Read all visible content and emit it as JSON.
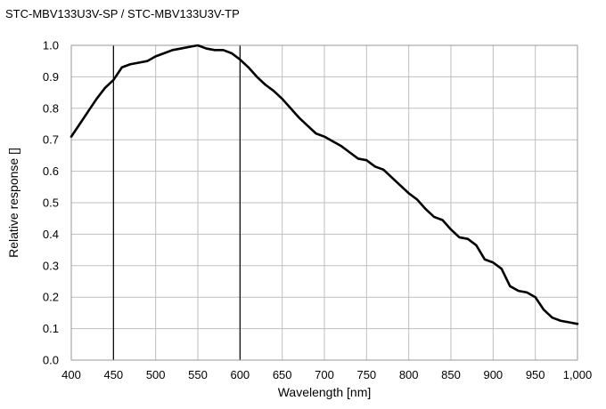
{
  "chart_data": {
    "type": "line",
    "title": "STC-MBV133U3V-SP / STC-MBV133U3V-TP",
    "xlabel": "Wavelength [nm]",
    "ylabel": "Relative response []",
    "xlim": [
      400,
      1000
    ],
    "ylim": [
      0.0,
      1.0
    ],
    "x_ticks": [
      400,
      450,
      500,
      550,
      600,
      650,
      700,
      750,
      800,
      850,
      900,
      950,
      1000
    ],
    "x_tick_labels": [
      "400",
      "450",
      "500",
      "550",
      "600",
      "650",
      "700",
      "750",
      "800",
      "850",
      "900",
      "950",
      "1,000"
    ],
    "y_ticks": [
      0.0,
      0.1,
      0.2,
      0.3,
      0.4,
      0.5,
      0.6,
      0.7,
      0.8,
      0.9,
      1.0
    ],
    "y_tick_labels": [
      "0.0",
      "0.1",
      "0.2",
      "0.3",
      "0.4",
      "0.5",
      "0.6",
      "0.7",
      "0.8",
      "0.9",
      "1.0"
    ],
    "grid": true,
    "highlight_x": [
      450,
      600
    ],
    "colors": {
      "line": "#000000",
      "grid": "#bfbfbf",
      "highlight": "#000000",
      "frame": "#999999"
    },
    "series": [
      {
        "x": [
          400,
          410,
          420,
          430,
          440,
          450,
          460,
          470,
          480,
          490,
          500,
          510,
          520,
          530,
          540,
          550,
          560,
          570,
          580,
          590,
          600,
          610,
          620,
          630,
          640,
          650,
          660,
          670,
          680,
          690,
          700,
          710,
          720,
          730,
          740,
          750,
          760,
          770,
          780,
          790,
          800,
          810,
          820,
          830,
          840,
          850,
          860,
          870,
          880,
          890,
          900,
          910,
          920,
          930,
          940,
          950,
          960,
          970,
          980,
          990,
          1000
        ],
        "values": [
          0.71,
          0.75,
          0.79,
          0.83,
          0.865,
          0.89,
          0.93,
          0.94,
          0.945,
          0.95,
          0.965,
          0.975,
          0.985,
          0.99,
          0.995,
          1.0,
          0.99,
          0.985,
          0.985,
          0.975,
          0.955,
          0.93,
          0.9,
          0.875,
          0.855,
          0.83,
          0.8,
          0.77,
          0.745,
          0.72,
          0.71,
          0.695,
          0.68,
          0.66,
          0.64,
          0.635,
          0.615,
          0.605,
          0.58,
          0.555,
          0.53,
          0.51,
          0.48,
          0.455,
          0.445,
          0.415,
          0.39,
          0.385,
          0.365,
          0.32,
          0.31,
          0.29,
          0.235,
          0.22,
          0.215,
          0.2,
          0.16,
          0.135,
          0.125,
          0.12,
          0.115
        ]
      }
    ]
  }
}
